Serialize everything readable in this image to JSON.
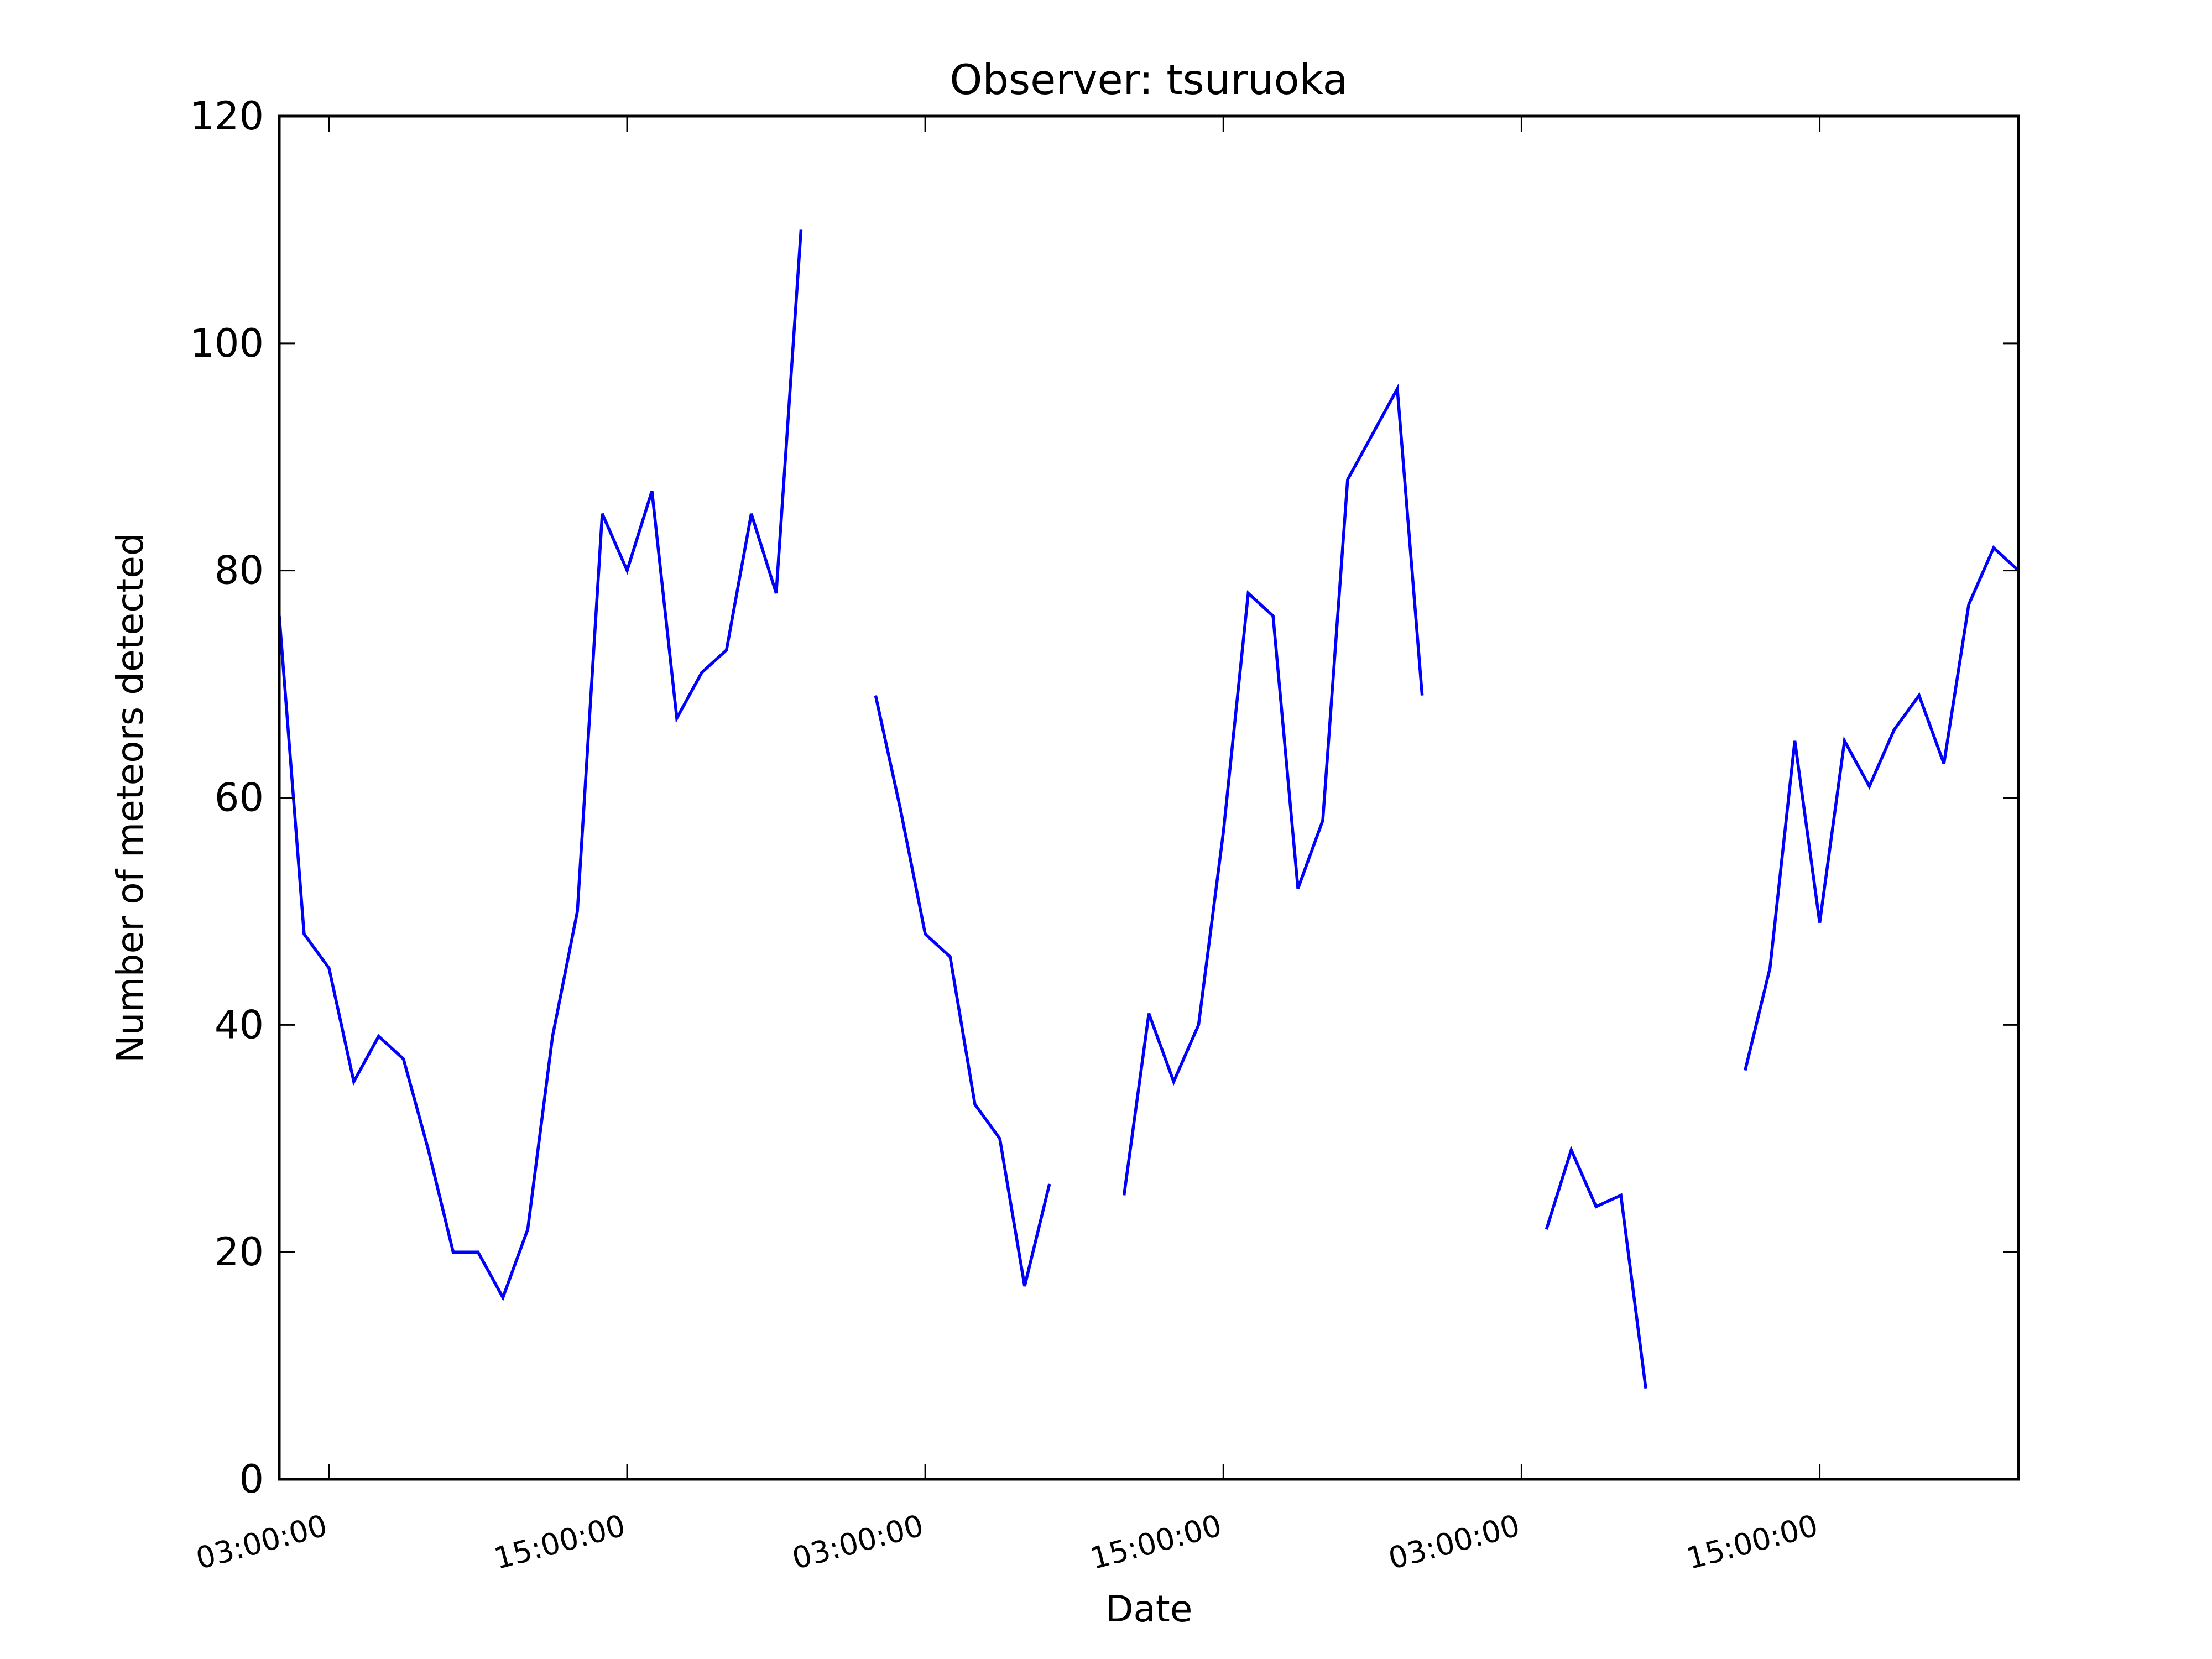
{
  "chart_data": {
    "type": "line",
    "title": "Observer: tsuruoka",
    "xlabel": "Date",
    "ylabel": "Number of meteors detected",
    "ylim": [
      0,
      120
    ],
    "xlim_hours": [
      1,
      71
    ],
    "y_ticks": [
      0,
      20,
      40,
      60,
      80,
      100,
      120
    ],
    "x_ticks": [
      {
        "hour": 3,
        "label": "03:00:00"
      },
      {
        "hour": 15,
        "label": "15:00:00"
      },
      {
        "hour": 27,
        "label": "03:00:00"
      },
      {
        "hour": 39,
        "label": "15:00:00"
      },
      {
        "hour": 51,
        "label": "03:00:00"
      },
      {
        "hour": 63,
        "label": "15:00:00"
      }
    ],
    "grid": false,
    "line_color": "#0000ff",
    "series": [
      {
        "x": [
          1,
          2,
          3,
          4,
          5,
          6,
          7,
          8,
          9,
          10,
          11,
          12,
          13,
          14,
          15,
          16,
          17,
          18,
          19,
          20,
          21,
          22,
          23,
          24,
          25,
          26,
          27,
          28,
          29,
          30,
          31,
          32,
          33,
          34,
          35,
          36,
          37,
          38,
          39,
          40,
          41,
          42,
          43,
          44,
          45,
          46,
          47,
          48,
          49,
          50,
          51,
          52,
          53,
          54,
          55,
          56,
          57,
          58,
          59,
          60,
          61,
          62,
          63,
          64,
          65,
          66,
          67,
          68,
          69,
          70,
          71
        ],
        "values": [
          76,
          48,
          45,
          35,
          39,
          37,
          29,
          20,
          20,
          16,
          22,
          39,
          50,
          85,
          80,
          87,
          67,
          71,
          73,
          85,
          78,
          110,
          null,
          null,
          69,
          59,
          48,
          46,
          33,
          30,
          17,
          26,
          null,
          null,
          25,
          41,
          35,
          40,
          57,
          78,
          76,
          52,
          58,
          88,
          92,
          96,
          69,
          null,
          null,
          null,
          null,
          22,
          29,
          24,
          25,
          8,
          null,
          null,
          null,
          36,
          45,
          65,
          49,
          65,
          61,
          66,
          69,
          63,
          77,
          82,
          80
        ]
      }
    ]
  }
}
